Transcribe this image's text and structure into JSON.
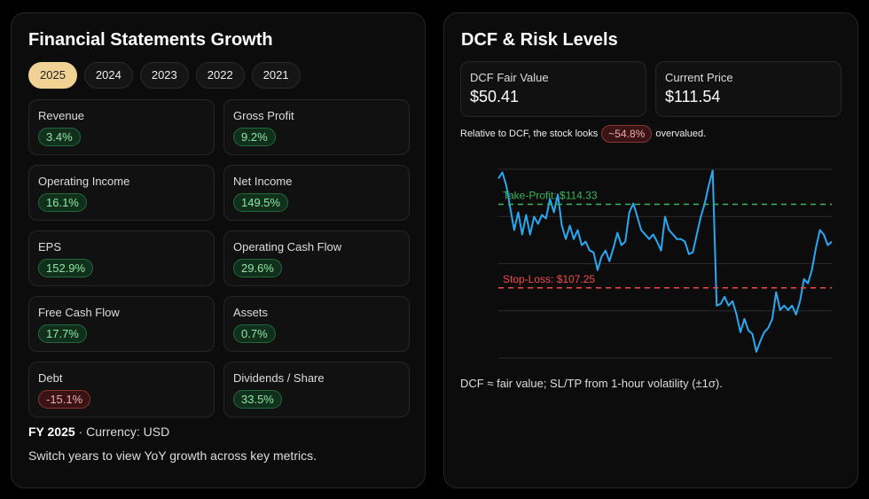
{
  "left": {
    "title": "Financial Statements Growth",
    "years": [
      "2025",
      "2024",
      "2023",
      "2022",
      "2021"
    ],
    "active_year": "2025",
    "metrics": [
      {
        "label": "Revenue",
        "value": "3.4%",
        "trend": "positive"
      },
      {
        "label": "Gross Profit",
        "value": "9.2%",
        "trend": "positive"
      },
      {
        "label": "Operating Income",
        "value": "16.1%",
        "trend": "positive"
      },
      {
        "label": "Net Income",
        "value": "149.5%",
        "trend": "positive"
      },
      {
        "label": "EPS",
        "value": "152.9%",
        "trend": "positive"
      },
      {
        "label": "Operating Cash Flow",
        "value": "29.6%",
        "trend": "positive"
      },
      {
        "label": "Free Cash Flow",
        "value": "17.7%",
        "trend": "positive"
      },
      {
        "label": "Assets",
        "value": "0.7%",
        "trend": "positive"
      },
      {
        "label": "Debt",
        "value": "-15.1%",
        "trend": "negative"
      },
      {
        "label": "Dividends / Share",
        "value": "33.5%",
        "trend": "positive"
      }
    ],
    "fy_label": "FY 2025",
    "currency": " · Currency: USD",
    "hint": "Switch years to view YoY growth across key metrics."
  },
  "right": {
    "title": "DCF & Risk Levels",
    "dcf_label": "DCF Fair Value",
    "dcf_value": "$50.41",
    "price_label": "Current Price",
    "price_value": "$111.54",
    "rel_prefix": "Relative to DCF, the stock looks",
    "rel_badge": "~54.8%",
    "rel_suffix": "overvalued.",
    "note": "DCF ≈ fair value; SL/TP from 1-hour volatility (±1σ)."
  },
  "colors": {
    "line": "#2aa8f0",
    "take_profit": "#35b85a",
    "stop_loss": "#ef4b4b",
    "accent": "#f0d394"
  },
  "chart_data": {
    "type": "line",
    "ylim": [
      101.3,
      117.3
    ],
    "grid": true,
    "take_profit": {
      "label": "Take-Profit: $114.33",
      "value": 114.33
    },
    "stop_loss": {
      "label": "Stop-Loss: $107.25",
      "value": 107.25
    },
    "values": [
      116.51,
      117.04,
      115.91,
      114.03,
      112.15,
      113.65,
      111.77,
      113.43,
      111.77,
      113.28,
      112.67,
      113.43,
      113.13,
      114.78,
      113.65,
      115.16,
      112.52,
      111.39,
      112.52,
      111.39,
      112.15,
      110.87,
      111.17,
      110.41,
      110.26,
      108.76,
      109.89,
      110.41,
      109.51,
      110.64,
      111.92,
      110.87,
      111.17,
      113.65,
      114.41,
      113.28,
      112.15,
      111.77,
      111.39,
      111.77,
      111.17,
      110.41,
      113.28,
      112.15,
      111.77,
      111.39,
      111.39,
      111.17,
      110.11,
      110.26,
      111.77,
      113.28,
      114.41,
      115.91,
      117.19,
      105.75,
      105.9,
      106.5,
      105.75,
      106.12,
      104.99,
      103.49,
      104.62,
      103.64,
      103.34,
      101.83,
      102.73,
      103.49,
      103.86,
      104.62,
      106.88,
      105.37,
      105.75,
      105.37,
      105.75,
      104.99,
      106.12,
      108.0,
      107.63,
      108.76,
      110.64,
      112.15,
      111.77,
      110.87,
      111.17
    ]
  }
}
